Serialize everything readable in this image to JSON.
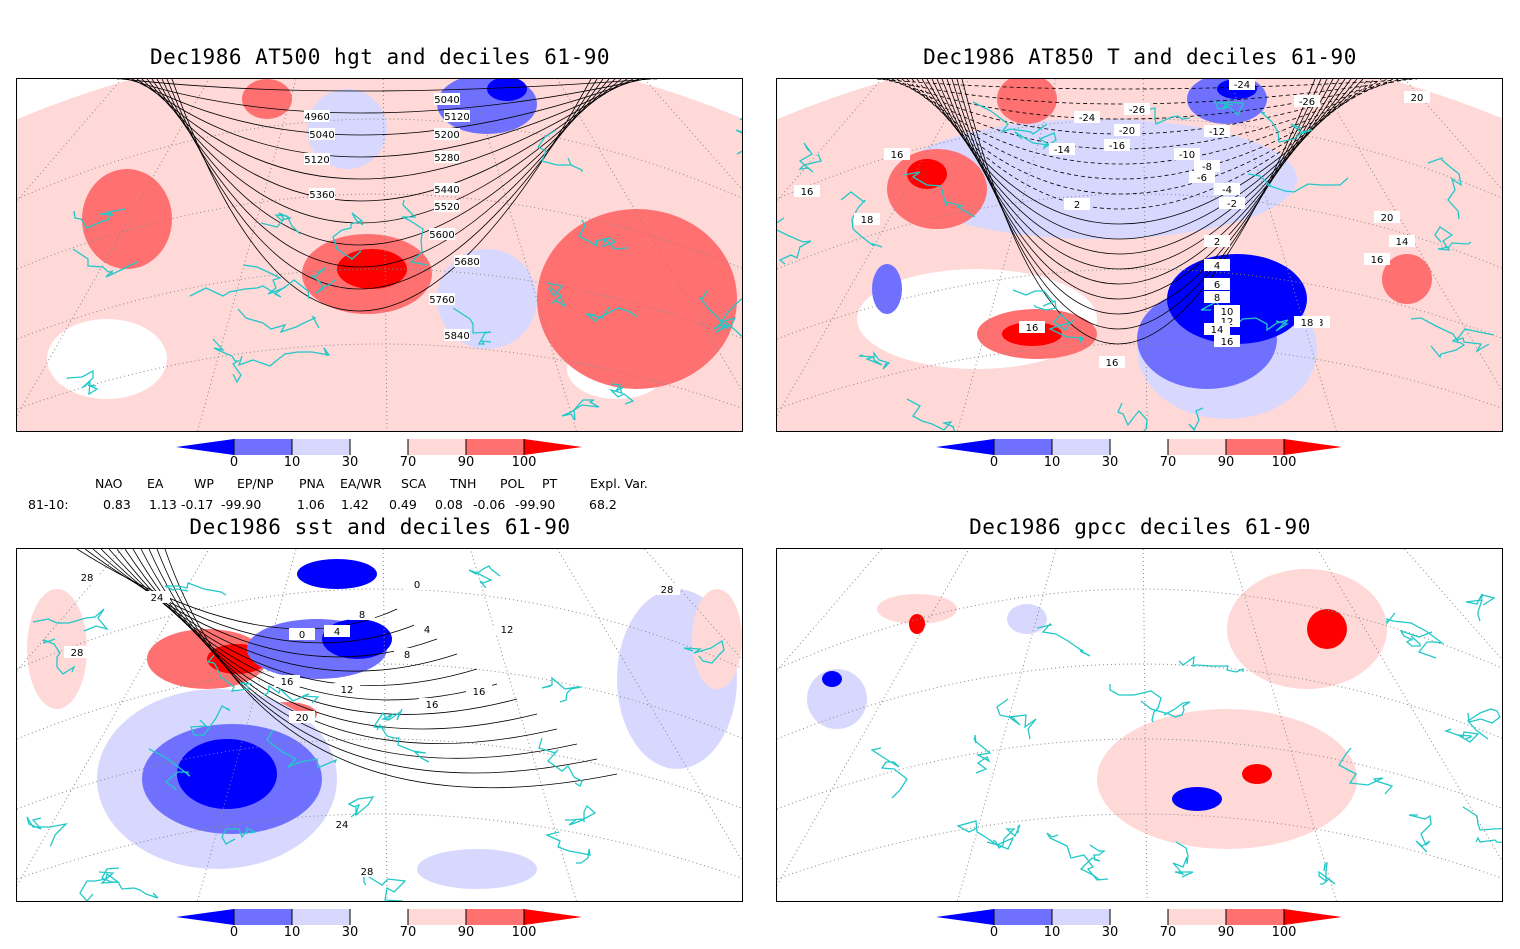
{
  "colors": {
    "c0": "#0000ff",
    "c1": "#7070ff",
    "c2": "#d8d8ff",
    "c3": "#ffffff",
    "c4": "#ffd8d8",
    "c5": "#ff7070",
    "c6": "#ff0000",
    "coast": "#22c8c8"
  },
  "colorbar": {
    "labels": [
      "0",
      "10",
      "30",
      "70",
      "90",
      "100"
    ]
  },
  "panels": [
    {
      "title": "Dec1986 AT500 hgt and deciles 61-90",
      "contour_labels": [
        "4960",
        "5040",
        "5120",
        "5040",
        "5120",
        "5200",
        "5280",
        "5360",
        "5440",
        "5520",
        "5600",
        "5680",
        "5760",
        "5840"
      ]
    },
    {
      "title": "Dec1986 AT850 T and deciles 61-90",
      "contour_labels": [
        "16",
        "16",
        "18",
        "-24",
        "-26",
        "-24",
        "-26",
        "-20",
        "-16",
        "-14",
        "-12",
        "-10",
        "-8",
        "-6",
        "-4",
        "-2",
        "2",
        "2",
        "4",
        "6",
        "8",
        "10",
        "12",
        "14",
        "16",
        "18",
        "20",
        "14",
        "16",
        "18",
        "20",
        "16",
        "16",
        "18"
      ]
    },
    {
      "title": "Dec1986 sst and deciles 61-90",
      "contour_labels": [
        "28",
        "24",
        "28",
        "20",
        "16",
        "12",
        "8",
        "4",
        "0",
        "0",
        "8",
        "4",
        "12",
        "16",
        "16",
        "28",
        "24",
        "28"
      ]
    },
    {
      "title": "Dec1986 gpcc deciles 61-90",
      "contour_labels": []
    }
  ],
  "indices": {
    "headers": [
      "NAO",
      "EA",
      "WP",
      "EP/NP",
      "PNA",
      "EA/WR",
      "SCA",
      "TNH",
      "POL",
      "PT",
      "Expl. Var."
    ],
    "row_label": "81-10:",
    "values": [
      "0.83",
      "1.13",
      "-0.17",
      "-99.90",
      "1.06",
      "1.42",
      "0.49",
      "0.08",
      "-0.06",
      "-99.90",
      "68.2"
    ]
  }
}
